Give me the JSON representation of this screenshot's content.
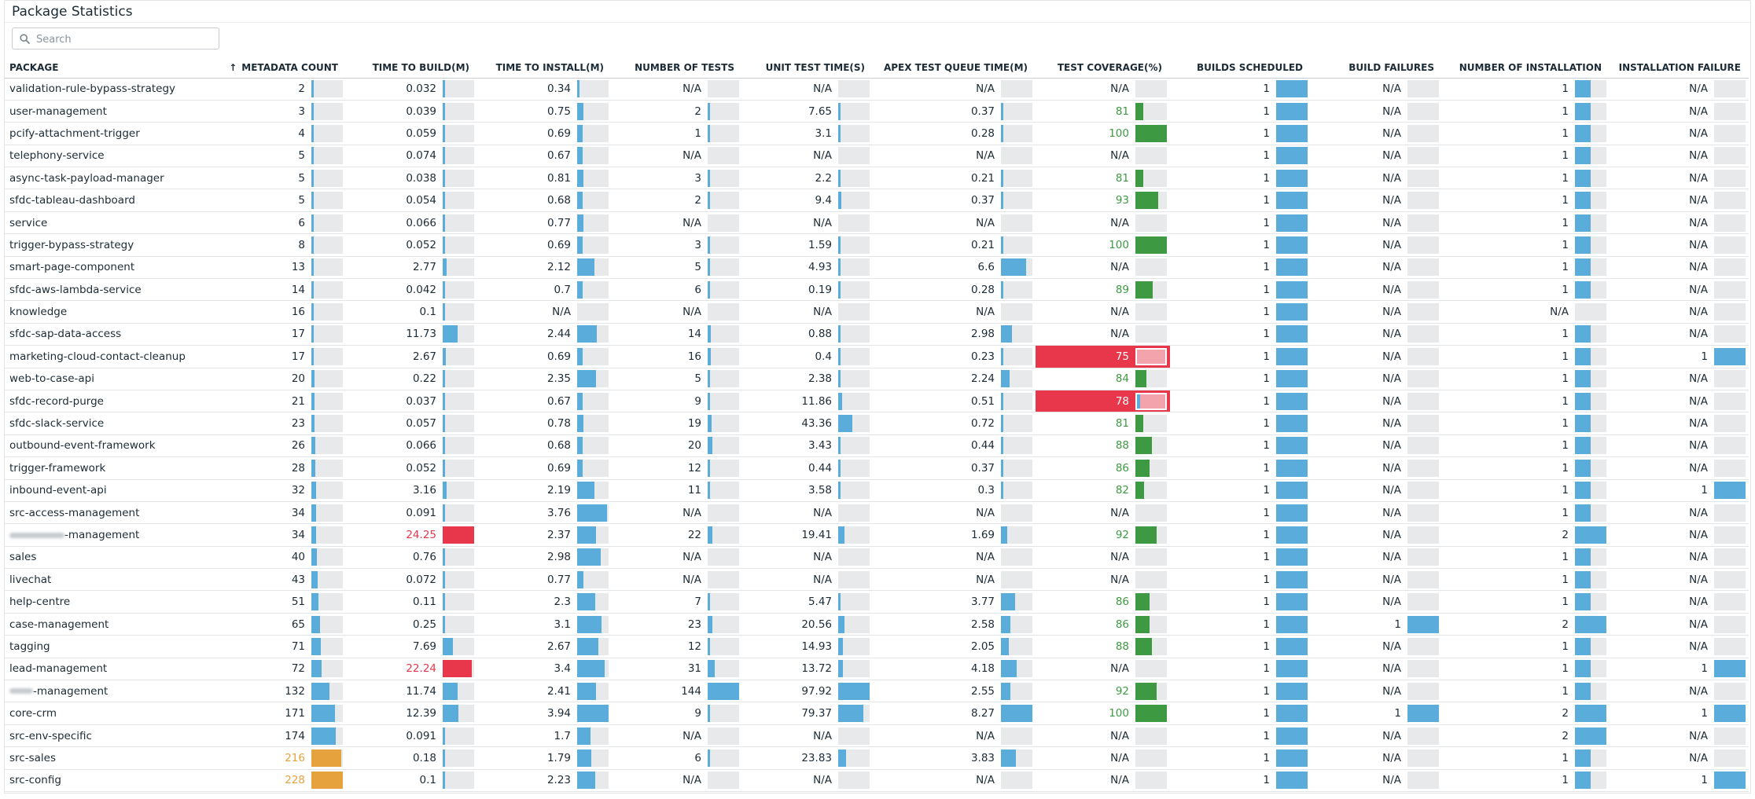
{
  "title": "Package Statistics",
  "search": {
    "placeholder": "Search"
  },
  "colors": {
    "bar": "#5aacda",
    "track": "#e7e9eb",
    "bad": "#e8374a",
    "warn": "#e6a23c",
    "good": "#3d9a43"
  },
  "sort": {
    "column": "metadata_count",
    "direction": "ascending",
    "icon": "arrow-up-icon",
    "glyph": "↑"
  },
  "columns": [
    {
      "key": "package",
      "label": "PACKAGE"
    },
    {
      "key": "metadata_count",
      "label": "METADATA COUNT"
    },
    {
      "key": "time_to_build",
      "label": "TIME TO BUILD(M)"
    },
    {
      "key": "time_to_install",
      "label": "TIME TO INSTALL(M)"
    },
    {
      "key": "number_of_tests",
      "label": "NUMBER OF TESTS"
    },
    {
      "key": "unit_test_time",
      "label": "UNIT TEST TIME(S)"
    },
    {
      "key": "apex_test_queue_time",
      "label": "APEX TEST QUEUE TIME(M)"
    },
    {
      "key": "test_coverage",
      "label": "TEST COVERAGE(%)"
    },
    {
      "key": "builds_scheduled",
      "label": "BUILDS SCHEDULED"
    },
    {
      "key": "build_failures",
      "label": "BUILD FAILURES"
    },
    {
      "key": "number_of_installation",
      "label": "NUMBER OF INSTALLATION"
    },
    {
      "key": "installation_failure",
      "label": "INSTALLATION FAILURE"
    }
  ],
  "rows": [
    {
      "package": "validation-rule-bypass-strategy",
      "metadata_count": "2",
      "time_to_build": "0.032",
      "time_to_install": "0.34",
      "number_of_tests": "N/A",
      "unit_test_time": "N/A",
      "apex_test_queue_time": "N/A",
      "test_coverage": "N/A",
      "builds_scheduled": "1",
      "build_failures": "N/A",
      "number_of_installation": "1",
      "installation_failure": "N/A"
    },
    {
      "package": "user-management",
      "metadata_count": "3",
      "time_to_build": "0.039",
      "time_to_install": "0.75",
      "number_of_tests": "2",
      "unit_test_time": "7.65",
      "apex_test_queue_time": "0.37",
      "test_coverage": "81",
      "builds_scheduled": "1",
      "build_failures": "N/A",
      "number_of_installation": "1",
      "installation_failure": "N/A"
    },
    {
      "package": "pcify-attachment-trigger",
      "metadata_count": "4",
      "time_to_build": "0.059",
      "time_to_install": "0.69",
      "number_of_tests": "1",
      "unit_test_time": "3.1",
      "apex_test_queue_time": "0.28",
      "test_coverage": "100",
      "builds_scheduled": "1",
      "build_failures": "N/A",
      "number_of_installation": "1",
      "installation_failure": "N/A"
    },
    {
      "package": "telephony-service",
      "metadata_count": "5",
      "time_to_build": "0.074",
      "time_to_install": "0.67",
      "number_of_tests": "N/A",
      "unit_test_time": "N/A",
      "apex_test_queue_time": "N/A",
      "test_coverage": "N/A",
      "builds_scheduled": "1",
      "build_failures": "N/A",
      "number_of_installation": "1",
      "installation_failure": "N/A"
    },
    {
      "package": "async-task-payload-manager",
      "metadata_count": "5",
      "time_to_build": "0.038",
      "time_to_install": "0.81",
      "number_of_tests": "3",
      "unit_test_time": "2.2",
      "apex_test_queue_time": "0.21",
      "test_coverage": "81",
      "builds_scheduled": "1",
      "build_failures": "N/A",
      "number_of_installation": "1",
      "installation_failure": "N/A"
    },
    {
      "package": "sfdc-tableau-dashboard",
      "metadata_count": "5",
      "time_to_build": "0.054",
      "time_to_install": "0.68",
      "number_of_tests": "2",
      "unit_test_time": "9.4",
      "apex_test_queue_time": "0.37",
      "test_coverage": "93",
      "builds_scheduled": "1",
      "build_failures": "N/A",
      "number_of_installation": "1",
      "installation_failure": "N/A"
    },
    {
      "package": "service",
      "metadata_count": "6",
      "time_to_build": "0.066",
      "time_to_install": "0.77",
      "number_of_tests": "N/A",
      "unit_test_time": "N/A",
      "apex_test_queue_time": "N/A",
      "test_coverage": "N/A",
      "builds_scheduled": "1",
      "build_failures": "N/A",
      "number_of_installation": "1",
      "installation_failure": "N/A"
    },
    {
      "package": "trigger-bypass-strategy",
      "metadata_count": "8",
      "time_to_build": "0.052",
      "time_to_install": "0.69",
      "number_of_tests": "3",
      "unit_test_time": "1.59",
      "apex_test_queue_time": "0.21",
      "test_coverage": "100",
      "builds_scheduled": "1",
      "build_failures": "N/A",
      "number_of_installation": "1",
      "installation_failure": "N/A"
    },
    {
      "package": "smart-page-component",
      "metadata_count": "13",
      "time_to_build": "2.77",
      "time_to_install": "2.12",
      "number_of_tests": "5",
      "unit_test_time": "4.93",
      "apex_test_queue_time": "6.6",
      "test_coverage": "N/A",
      "builds_scheduled": "1",
      "build_failures": "N/A",
      "number_of_installation": "1",
      "installation_failure": "N/A"
    },
    {
      "package": "sfdc-aws-lambda-service",
      "metadata_count": "14",
      "time_to_build": "0.042",
      "time_to_install": "0.7",
      "number_of_tests": "6",
      "unit_test_time": "0.19",
      "apex_test_queue_time": "0.28",
      "test_coverage": "89",
      "builds_scheduled": "1",
      "build_failures": "N/A",
      "number_of_installation": "1",
      "installation_failure": "N/A"
    },
    {
      "package": "knowledge",
      "metadata_count": "16",
      "time_to_build": "0.1",
      "time_to_install": "N/A",
      "number_of_tests": "N/A",
      "unit_test_time": "N/A",
      "apex_test_queue_time": "N/A",
      "test_coverage": "N/A",
      "builds_scheduled": "1",
      "build_failures": "N/A",
      "number_of_installation": "N/A",
      "installation_failure": "N/A"
    },
    {
      "package": "sfdc-sap-data-access",
      "metadata_count": "17",
      "time_to_build": "11.73",
      "time_to_install": "2.44",
      "number_of_tests": "14",
      "unit_test_time": "0.88",
      "apex_test_queue_time": "2.98",
      "test_coverage": "N/A",
      "builds_scheduled": "1",
      "build_failures": "N/A",
      "number_of_installation": "1",
      "installation_failure": "N/A"
    },
    {
      "package": "marketing-cloud-contact-cleanup",
      "metadata_count": "17",
      "time_to_build": "2.67",
      "time_to_install": "0.69",
      "number_of_tests": "16",
      "unit_test_time": "0.4",
      "apex_test_queue_time": "0.23",
      "test_coverage": "75",
      "builds_scheduled": "1",
      "build_failures": "N/A",
      "number_of_installation": "1",
      "installation_failure": "1"
    },
    {
      "package": "web-to-case-api",
      "metadata_count": "20",
      "time_to_build": "0.22",
      "time_to_install": "2.35",
      "number_of_tests": "5",
      "unit_test_time": "2.38",
      "apex_test_queue_time": "2.24",
      "test_coverage": "84",
      "builds_scheduled": "1",
      "build_failures": "N/A",
      "number_of_installation": "1",
      "installation_failure": "N/A"
    },
    {
      "package": "sfdc-record-purge",
      "metadata_count": "21",
      "time_to_build": "0.037",
      "time_to_install": "0.67",
      "number_of_tests": "9",
      "unit_test_time": "11.86",
      "apex_test_queue_time": "0.51",
      "test_coverage": "78",
      "builds_scheduled": "1",
      "build_failures": "N/A",
      "number_of_installation": "1",
      "installation_failure": "N/A"
    },
    {
      "package": "sfdc-slack-service",
      "metadata_count": "23",
      "time_to_build": "0.057",
      "time_to_install": "0.78",
      "number_of_tests": "19",
      "unit_test_time": "43.36",
      "apex_test_queue_time": "0.72",
      "test_coverage": "81",
      "builds_scheduled": "1",
      "build_failures": "N/A",
      "number_of_installation": "1",
      "installation_failure": "N/A"
    },
    {
      "package": "outbound-event-framework",
      "metadata_count": "26",
      "time_to_build": "0.066",
      "time_to_install": "0.68",
      "number_of_tests": "20",
      "unit_test_time": "3.43",
      "apex_test_queue_time": "0.44",
      "test_coverage": "88",
      "builds_scheduled": "1",
      "build_failures": "N/A",
      "number_of_installation": "1",
      "installation_failure": "N/A"
    },
    {
      "package": "trigger-framework",
      "metadata_count": "28",
      "time_to_build": "0.052",
      "time_to_install": "0.69",
      "number_of_tests": "12",
      "unit_test_time": "0.44",
      "apex_test_queue_time": "0.37",
      "test_coverage": "86",
      "builds_scheduled": "1",
      "build_failures": "N/A",
      "number_of_installation": "1",
      "installation_failure": "N/A"
    },
    {
      "package": "inbound-event-api",
      "metadata_count": "32",
      "time_to_build": "3.16",
      "time_to_install": "2.19",
      "number_of_tests": "11",
      "unit_test_time": "3.58",
      "apex_test_queue_time": "0.3",
      "test_coverage": "82",
      "builds_scheduled": "1",
      "build_failures": "N/A",
      "number_of_installation": "1",
      "installation_failure": "1"
    },
    {
      "package": "src-access-management",
      "metadata_count": "34",
      "time_to_build": "0.091",
      "time_to_install": "3.76",
      "number_of_tests": "N/A",
      "unit_test_time": "N/A",
      "apex_test_queue_time": "N/A",
      "test_coverage": "N/A",
      "builds_scheduled": "1",
      "build_failures": "N/A",
      "number_of_installation": "1",
      "installation_failure": "N/A"
    },
    {
      "package": "-management",
      "blur_prefix": 70,
      "metadata_count": "34",
      "time_to_build": "24.25",
      "time_to_install": "2.37",
      "number_of_tests": "22",
      "unit_test_time": "19.41",
      "apex_test_queue_time": "1.69",
      "test_coverage": "92",
      "builds_scheduled": "1",
      "build_failures": "N/A",
      "number_of_installation": "2",
      "installation_failure": "N/A"
    },
    {
      "package": "sales",
      "metadata_count": "40",
      "time_to_build": "0.76",
      "time_to_install": "2.98",
      "number_of_tests": "N/A",
      "unit_test_time": "N/A",
      "apex_test_queue_time": "N/A",
      "test_coverage": "N/A",
      "builds_scheduled": "1",
      "build_failures": "N/A",
      "number_of_installation": "1",
      "installation_failure": "N/A"
    },
    {
      "package": "livechat",
      "metadata_count": "43",
      "time_to_build": "0.072",
      "time_to_install": "0.77",
      "number_of_tests": "N/A",
      "unit_test_time": "N/A",
      "apex_test_queue_time": "N/A",
      "test_coverage": "N/A",
      "builds_scheduled": "1",
      "build_failures": "N/A",
      "number_of_installation": "1",
      "installation_failure": "N/A"
    },
    {
      "package": "help-centre",
      "metadata_count": "51",
      "time_to_build": "0.11",
      "time_to_install": "2.3",
      "number_of_tests": "7",
      "unit_test_time": "5.47",
      "apex_test_queue_time": "3.77",
      "test_coverage": "86",
      "builds_scheduled": "1",
      "build_failures": "N/A",
      "number_of_installation": "1",
      "installation_failure": "N/A"
    },
    {
      "package": "case-management",
      "metadata_count": "65",
      "time_to_build": "0.25",
      "time_to_install": "3.1",
      "number_of_tests": "23",
      "unit_test_time": "20.56",
      "apex_test_queue_time": "2.58",
      "test_coverage": "86",
      "builds_scheduled": "1",
      "build_failures": "1",
      "number_of_installation": "2",
      "installation_failure": "N/A"
    },
    {
      "package": "tagging",
      "metadata_count": "71",
      "time_to_build": "7.69",
      "time_to_install": "2.67",
      "number_of_tests": "12",
      "unit_test_time": "14.93",
      "apex_test_queue_time": "2.05",
      "test_coverage": "88",
      "builds_scheduled": "1",
      "build_failures": "N/A",
      "number_of_installation": "1",
      "installation_failure": "N/A"
    },
    {
      "package": "lead-management",
      "metadata_count": "72",
      "time_to_build": "22.24",
      "time_to_install": "3.4",
      "number_of_tests": "31",
      "unit_test_time": "13.72",
      "apex_test_queue_time": "4.18",
      "test_coverage": "N/A",
      "builds_scheduled": "1",
      "build_failures": "N/A",
      "number_of_installation": "1",
      "installation_failure": "1"
    },
    {
      "package": "-management",
      "blur_prefix": 30,
      "metadata_count": "132",
      "time_to_build": "11.74",
      "time_to_install": "2.41",
      "number_of_tests": "144",
      "unit_test_time": "97.92",
      "apex_test_queue_time": "2.55",
      "test_coverage": "92",
      "builds_scheduled": "1",
      "build_failures": "N/A",
      "number_of_installation": "1",
      "installation_failure": "N/A"
    },
    {
      "package": "core-crm",
      "metadata_count": "171",
      "time_to_build": "12.39",
      "time_to_install": "3.94",
      "number_of_tests": "9",
      "unit_test_time": "79.37",
      "apex_test_queue_time": "8.27",
      "test_coverage": "100",
      "builds_scheduled": "1",
      "build_failures": "1",
      "number_of_installation": "2",
      "installation_failure": "1"
    },
    {
      "package": "src-env-specific",
      "metadata_count": "174",
      "time_to_build": "0.091",
      "time_to_install": "1.7",
      "number_of_tests": "N/A",
      "unit_test_time": "N/A",
      "apex_test_queue_time": "N/A",
      "test_coverage": "N/A",
      "builds_scheduled": "1",
      "build_failures": "N/A",
      "number_of_installation": "2",
      "installation_failure": "N/A"
    },
    {
      "package": "src-sales",
      "metadata_count": "216",
      "time_to_build": "0.18",
      "time_to_install": "1.79",
      "number_of_tests": "6",
      "unit_test_time": "23.83",
      "apex_test_queue_time": "3.83",
      "test_coverage": "N/A",
      "builds_scheduled": "1",
      "build_failures": "N/A",
      "number_of_installation": "1",
      "installation_failure": "N/A"
    },
    {
      "package": "src-config",
      "metadata_count": "228",
      "time_to_build": "0.1",
      "time_to_install": "2.23",
      "number_of_tests": "N/A",
      "unit_test_time": "N/A",
      "apex_test_queue_time": "N/A",
      "test_coverage": "N/A",
      "builds_scheduled": "1",
      "build_failures": "N/A",
      "number_of_installation": "1",
      "installation_failure": "1"
    }
  ]
}
